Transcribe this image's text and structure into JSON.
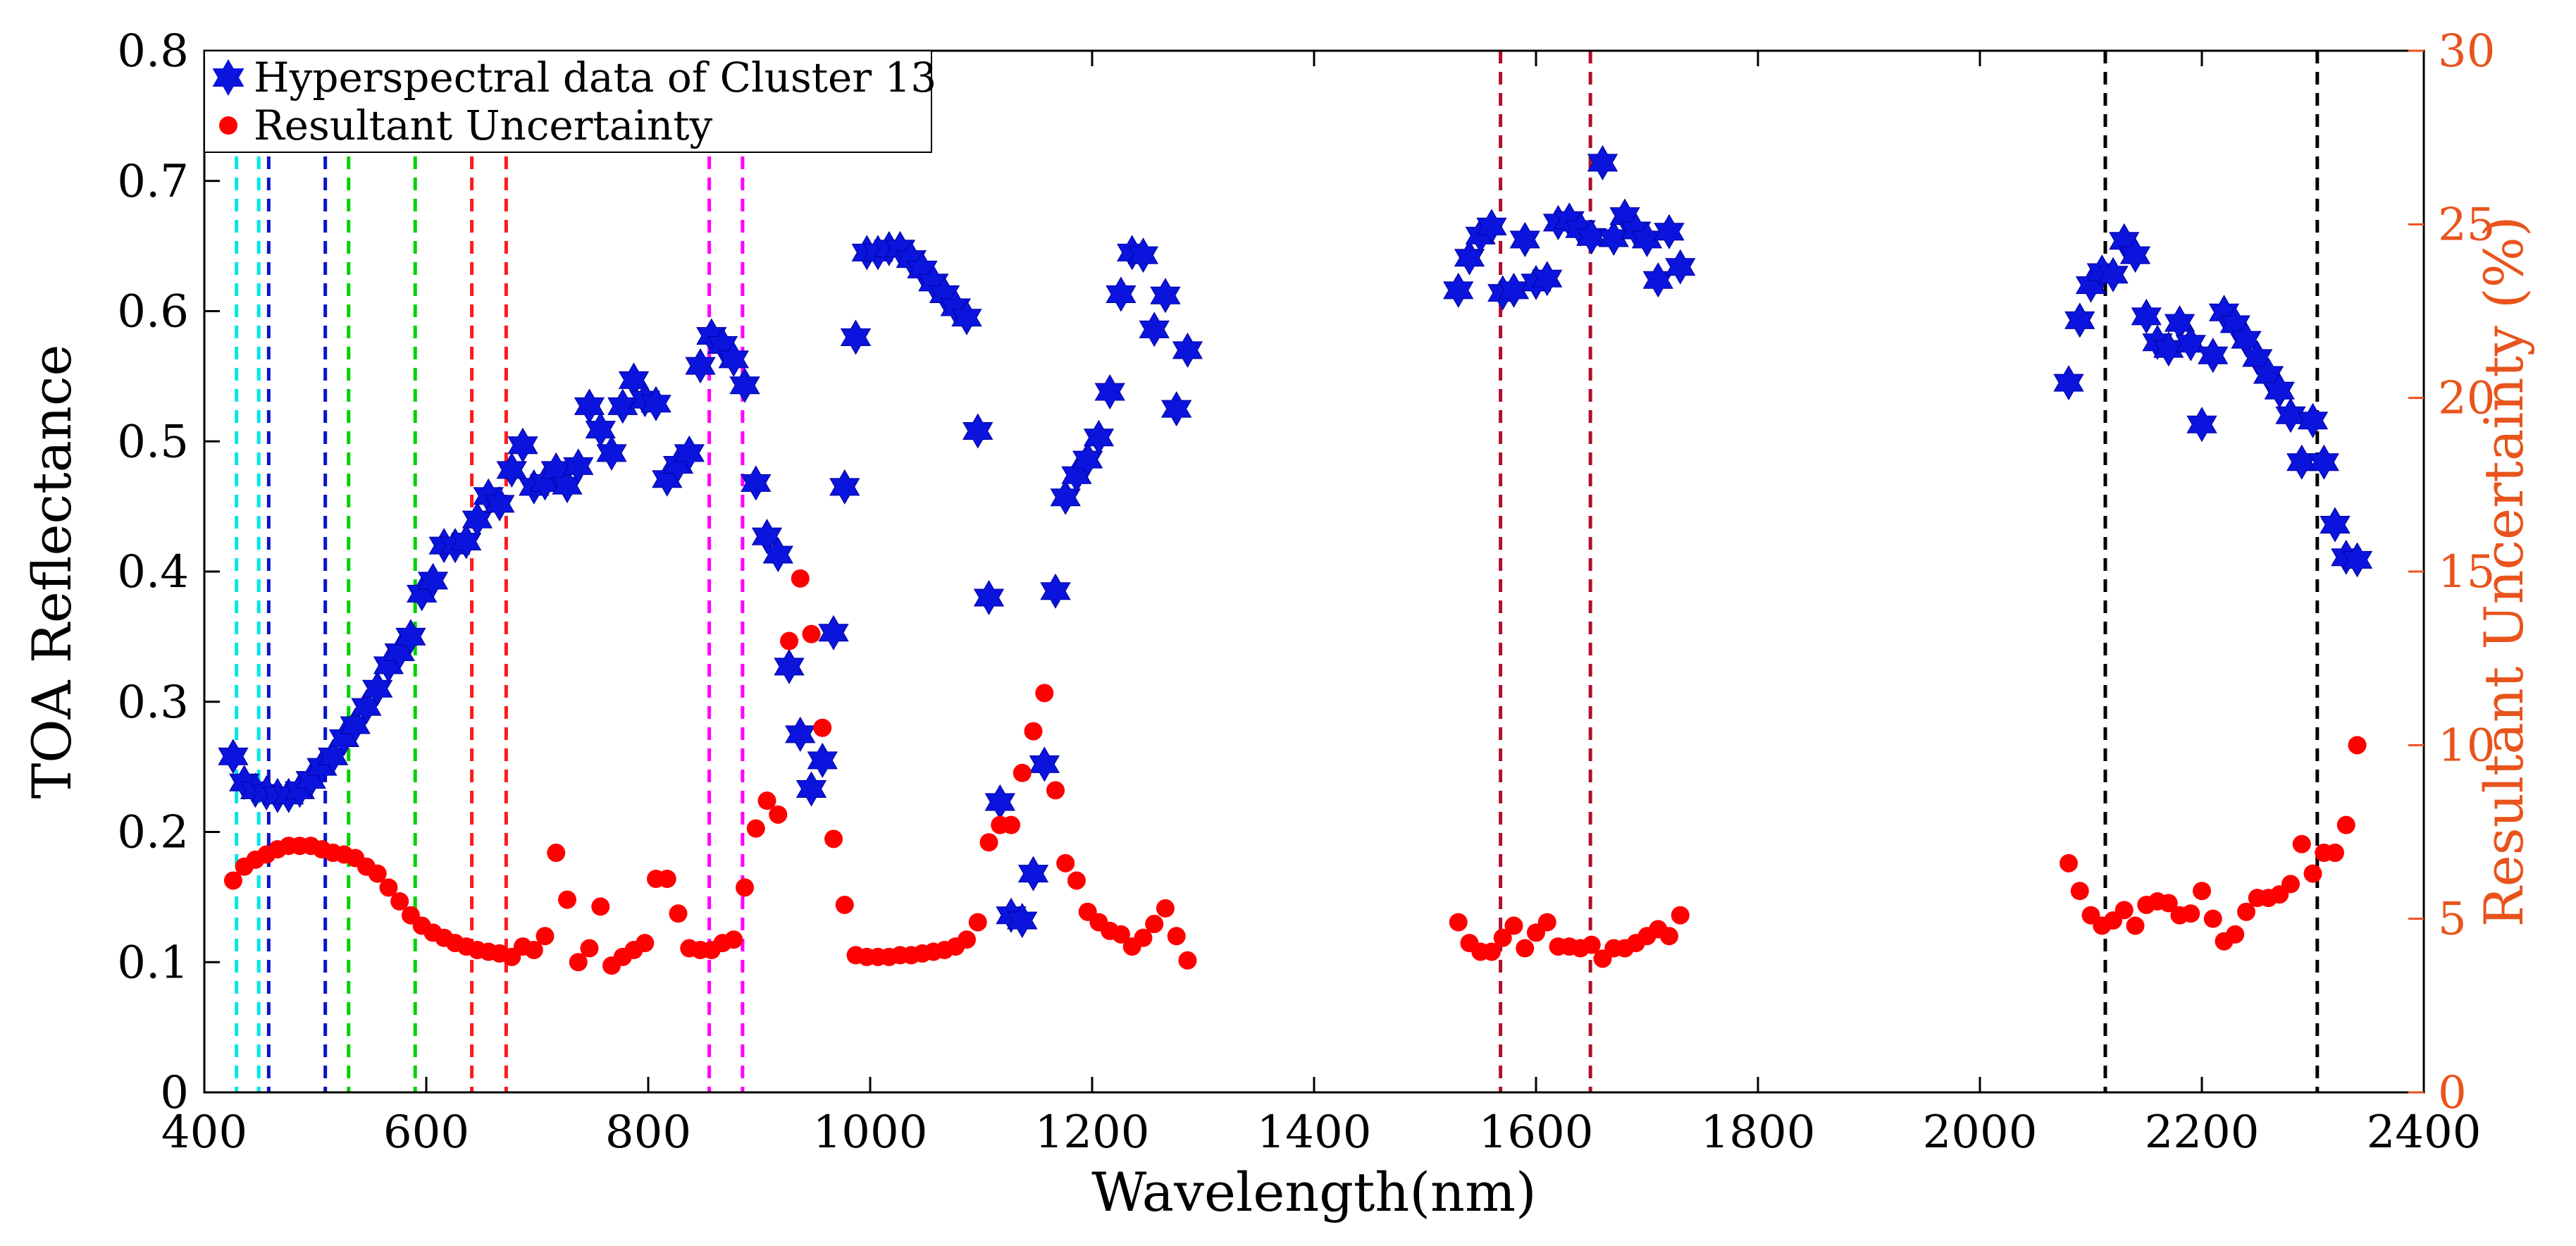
{
  "chart_data": {
    "type": "scatter",
    "xlabel": "Wavelength(nm)",
    "ylabel": "TOA Reflectance",
    "y2label": "Resultant Uncertainty (%)",
    "xlim": [
      400,
      2400
    ],
    "ylim": [
      0,
      0.8
    ],
    "y2lim": [
      0,
      30
    ],
    "xticks": [
      400,
      600,
      800,
      1000,
      1200,
      1400,
      1600,
      1800,
      2000,
      2200,
      2400
    ],
    "yticks": [
      "0",
      "0.1",
      "0.2",
      "0.3",
      "0.4",
      "0.5",
      "0.6",
      "0.7",
      "0.8"
    ],
    "y2ticks": [
      "0",
      "5",
      "10",
      "15",
      "20",
      "25",
      "30"
    ],
    "legend_position": "top-left",
    "series": [
      {
        "name": "Hyperspectral data of Cluster 13",
        "axis": "left",
        "marker": "hexagram",
        "color": "#0a14dc",
        "points": [
          [
            426,
            0.258
          ],
          [
            436,
            0.238
          ],
          [
            446,
            0.232
          ],
          [
            456,
            0.23
          ],
          [
            466,
            0.228
          ],
          [
            476,
            0.228
          ],
          [
            486,
            0.232
          ],
          [
            496,
            0.24
          ],
          [
            506,
            0.25
          ],
          [
            516,
            0.258
          ],
          [
            526,
            0.272
          ],
          [
            536,
            0.282
          ],
          [
            546,
            0.296
          ],
          [
            556,
            0.31
          ],
          [
            566,
            0.328
          ],
          [
            576,
            0.338
          ],
          [
            586,
            0.35
          ],
          [
            596,
            0.383
          ],
          [
            606,
            0.393
          ],
          [
            616,
            0.42
          ],
          [
            626,
            0.42
          ],
          [
            636,
            0.423
          ],
          [
            646,
            0.44
          ],
          [
            656,
            0.458
          ],
          [
            666,
            0.452
          ],
          [
            677,
            0.478
          ],
          [
            687,
            0.497
          ],
          [
            697,
            0.465
          ],
          [
            707,
            0.468
          ],
          [
            717,
            0.478
          ],
          [
            727,
            0.466
          ],
          [
            737,
            0.481
          ],
          [
            747,
            0.527
          ],
          [
            757,
            0.509
          ],
          [
            767,
            0.491
          ],
          [
            777,
            0.527
          ],
          [
            787,
            0.547
          ],
          [
            797,
            0.532
          ],
          [
            807,
            0.529
          ],
          [
            817,
            0.471
          ],
          [
            827,
            0.482
          ],
          [
            837,
            0.491
          ],
          [
            847,
            0.558
          ],
          [
            857,
            0.581
          ],
          [
            867,
            0.574
          ],
          [
            877,
            0.563
          ],
          [
            887,
            0.543
          ],
          [
            897,
            0.468
          ],
          [
            907,
            0.427
          ],
          [
            917,
            0.413
          ],
          [
            927,
            0.327
          ],
          [
            937,
            0.275
          ],
          [
            947,
            0.233
          ],
          [
            957,
            0.255
          ],
          [
            967,
            0.353
          ],
          [
            977,
            0.465
          ],
          [
            987,
            0.58
          ],
          [
            997,
            0.645
          ],
          [
            1007,
            0.645
          ],
          [
            1017,
            0.648
          ],
          [
            1027,
            0.648
          ],
          [
            1037,
            0.64
          ],
          [
            1047,
            0.632
          ],
          [
            1057,
            0.622
          ],
          [
            1067,
            0.613
          ],
          [
            1077,
            0.603
          ],
          [
            1087,
            0.595
          ],
          [
            1097,
            0.508
          ],
          [
            1107,
            0.38
          ],
          [
            1117,
            0.223
          ],
          [
            1127,
            0.136
          ],
          [
            1137,
            0.132
          ],
          [
            1147,
            0.168
          ],
          [
            1157,
            0.252
          ],
          [
            1167,
            0.385
          ],
          [
            1176,
            0.457
          ],
          [
            1186,
            0.474
          ],
          [
            1196,
            0.486
          ],
          [
            1206,
            0.503
          ],
          [
            1216,
            0.538
          ],
          [
            1226,
            0.613
          ],
          [
            1236,
            0.645
          ],
          [
            1246,
            0.643
          ],
          [
            1256,
            0.586
          ],
          [
            1266,
            0.612
          ],
          [
            1276,
            0.525
          ],
          [
            1286,
            0.57
          ],
          [
            1530,
            0.616
          ],
          [
            1540,
            0.641
          ],
          [
            1550,
            0.658
          ],
          [
            1560,
            0.665
          ],
          [
            1570,
            0.614
          ],
          [
            1580,
            0.616
          ],
          [
            1590,
            0.655
          ],
          [
            1600,
            0.622
          ],
          [
            1610,
            0.625
          ],
          [
            1620,
            0.668
          ],
          [
            1630,
            0.67
          ],
          [
            1640,
            0.663
          ],
          [
            1650,
            0.657
          ],
          [
            1660,
            0.714
          ],
          [
            1670,
            0.656
          ],
          [
            1680,
            0.673
          ],
          [
            1690,
            0.662
          ],
          [
            1700,
            0.655
          ],
          [
            1710,
            0.624
          ],
          [
            1720,
            0.661
          ],
          [
            1730,
            0.634
          ],
          [
            2080,
            0.545
          ],
          [
            2090,
            0.593
          ],
          [
            2100,
            0.62
          ],
          [
            2110,
            0.63
          ],
          [
            2120,
            0.628
          ],
          [
            2130,
            0.654
          ],
          [
            2140,
            0.643
          ],
          [
            2150,
            0.596
          ],
          [
            2160,
            0.576
          ],
          [
            2170,
            0.571
          ],
          [
            2180,
            0.591
          ],
          [
            2190,
            0.575
          ],
          [
            2200,
            0.513
          ],
          [
            2210,
            0.566
          ],
          [
            2220,
            0.599
          ],
          [
            2230,
            0.59
          ],
          [
            2240,
            0.578
          ],
          [
            2250,
            0.564
          ],
          [
            2260,
            0.551
          ],
          [
            2270,
            0.539
          ],
          [
            2280,
            0.52
          ],
          [
            2290,
            0.484
          ],
          [
            2300,
            0.516
          ],
          [
            2310,
            0.484
          ],
          [
            2320,
            0.436
          ],
          [
            2330,
            0.411
          ],
          [
            2340,
            0.409
          ]
        ]
      },
      {
        "name": "Resultant Uncertainty",
        "axis": "right",
        "marker": "circle",
        "color": "#ff0000",
        "points": [
          [
            426,
            6.1
          ],
          [
            436,
            6.5
          ],
          [
            446,
            6.7
          ],
          [
            456,
            6.85
          ],
          [
            466,
            7.0
          ],
          [
            476,
            7.1
          ],
          [
            486,
            7.1
          ],
          [
            496,
            7.1
          ],
          [
            506,
            7.0
          ],
          [
            516,
            6.9
          ],
          [
            526,
            6.85
          ],
          [
            536,
            6.75
          ],
          [
            546,
            6.5
          ],
          [
            556,
            6.3
          ],
          [
            566,
            5.9
          ],
          [
            576,
            5.5
          ],
          [
            586,
            5.1
          ],
          [
            596,
            4.8
          ],
          [
            606,
            4.6
          ],
          [
            616,
            4.45
          ],
          [
            626,
            4.3
          ],
          [
            636,
            4.2
          ],
          [
            646,
            4.1
          ],
          [
            656,
            4.05
          ],
          [
            666,
            4.0
          ],
          [
            677,
            3.9
          ],
          [
            687,
            4.2
          ],
          [
            697,
            4.1
          ],
          [
            707,
            4.5
          ],
          [
            717,
            6.9
          ],
          [
            727,
            5.55
          ],
          [
            737,
            3.75
          ],
          [
            747,
            4.15
          ],
          [
            757,
            5.35
          ],
          [
            767,
            3.65
          ],
          [
            777,
            3.9
          ],
          [
            787,
            4.1
          ],
          [
            797,
            4.3
          ],
          [
            807,
            6.15
          ],
          [
            817,
            6.15
          ],
          [
            827,
            5.15
          ],
          [
            837,
            4.15
          ],
          [
            847,
            4.1
          ],
          [
            857,
            4.1
          ],
          [
            867,
            4.3
          ],
          [
            877,
            4.4
          ],
          [
            887,
            5.9
          ],
          [
            897,
            7.6
          ],
          [
            907,
            8.4
          ],
          [
            917,
            8.0
          ],
          [
            927,
            13.0
          ],
          [
            937,
            14.8
          ],
          [
            947,
            13.2
          ],
          [
            957,
            10.5
          ],
          [
            967,
            7.3
          ],
          [
            977,
            5.4
          ],
          [
            987,
            3.95
          ],
          [
            997,
            3.9
          ],
          [
            1007,
            3.9
          ],
          [
            1017,
            3.9
          ],
          [
            1027,
            3.95
          ],
          [
            1037,
            3.95
          ],
          [
            1047,
            4.0
          ],
          [
            1057,
            4.05
          ],
          [
            1067,
            4.1
          ],
          [
            1077,
            4.2
          ],
          [
            1087,
            4.4
          ],
          [
            1097,
            4.9
          ],
          [
            1107,
            7.2
          ],
          [
            1117,
            7.7
          ],
          [
            1127,
            7.7
          ],
          [
            1137,
            9.2
          ],
          [
            1147,
            10.4
          ],
          [
            1157,
            11.5
          ],
          [
            1167,
            8.7
          ],
          [
            1176,
            6.6
          ],
          [
            1186,
            6.1
          ],
          [
            1196,
            5.2
          ],
          [
            1206,
            4.9
          ],
          [
            1216,
            4.65
          ],
          [
            1226,
            4.55
          ],
          [
            1236,
            4.2
          ],
          [
            1246,
            4.45
          ],
          [
            1256,
            4.85
          ],
          [
            1266,
            5.3
          ],
          [
            1276,
            4.5
          ],
          [
            1286,
            3.8
          ],
          [
            1530,
            4.9
          ],
          [
            1540,
            4.3
          ],
          [
            1550,
            4.05
          ],
          [
            1560,
            4.05
          ],
          [
            1570,
            4.45
          ],
          [
            1580,
            4.8
          ],
          [
            1590,
            4.15
          ],
          [
            1600,
            4.6
          ],
          [
            1610,
            4.9
          ],
          [
            1620,
            4.2
          ],
          [
            1630,
            4.2
          ],
          [
            1640,
            4.15
          ],
          [
            1650,
            4.25
          ],
          [
            1660,
            3.85
          ],
          [
            1670,
            4.15
          ],
          [
            1680,
            4.15
          ],
          [
            1690,
            4.3
          ],
          [
            1700,
            4.5
          ],
          [
            1710,
            4.7
          ],
          [
            1720,
            4.5
          ],
          [
            1730,
            5.1
          ],
          [
            2080,
            6.6
          ],
          [
            2090,
            5.8
          ],
          [
            2100,
            5.1
          ],
          [
            2110,
            4.8
          ],
          [
            2120,
            4.95
          ],
          [
            2130,
            5.25
          ],
          [
            2140,
            4.8
          ],
          [
            2150,
            5.4
          ],
          [
            2160,
            5.5
          ],
          [
            2170,
            5.45
          ],
          [
            2180,
            5.1
          ],
          [
            2190,
            5.15
          ],
          [
            2200,
            5.8
          ],
          [
            2210,
            5.0
          ],
          [
            2220,
            4.35
          ],
          [
            2230,
            4.55
          ],
          [
            2240,
            5.2
          ],
          [
            2250,
            5.6
          ],
          [
            2260,
            5.6
          ],
          [
            2270,
            5.7
          ],
          [
            2280,
            6.0
          ],
          [
            2290,
            7.15
          ],
          [
            2300,
            6.3
          ],
          [
            2310,
            6.9
          ],
          [
            2320,
            6.9
          ],
          [
            2330,
            7.7
          ],
          [
            2340,
            10.0
          ]
        ]
      }
    ],
    "reference_lines": [
      {
        "x": 429,
        "color": "#00e6e6"
      },
      {
        "x": 449,
        "color": "#00e6e6"
      },
      {
        "x": 458,
        "color": "#0a14c8"
      },
      {
        "x": 509,
        "color": "#0a14c8"
      },
      {
        "x": 530,
        "color": "#00d000"
      },
      {
        "x": 590,
        "color": "#00d000"
      },
      {
        "x": 641,
        "color": "#ff1a1a"
      },
      {
        "x": 672,
        "color": "#ff1a1a"
      },
      {
        "x": 855,
        "color": "#ff00ff"
      },
      {
        "x": 885,
        "color": "#ff00ff"
      },
      {
        "x": 1568,
        "color": "#b0102a"
      },
      {
        "x": 1649,
        "color": "#b0102a"
      },
      {
        "x": 2113,
        "color": "#000000"
      },
      {
        "x": 2304,
        "color": "#000000"
      }
    ]
  }
}
